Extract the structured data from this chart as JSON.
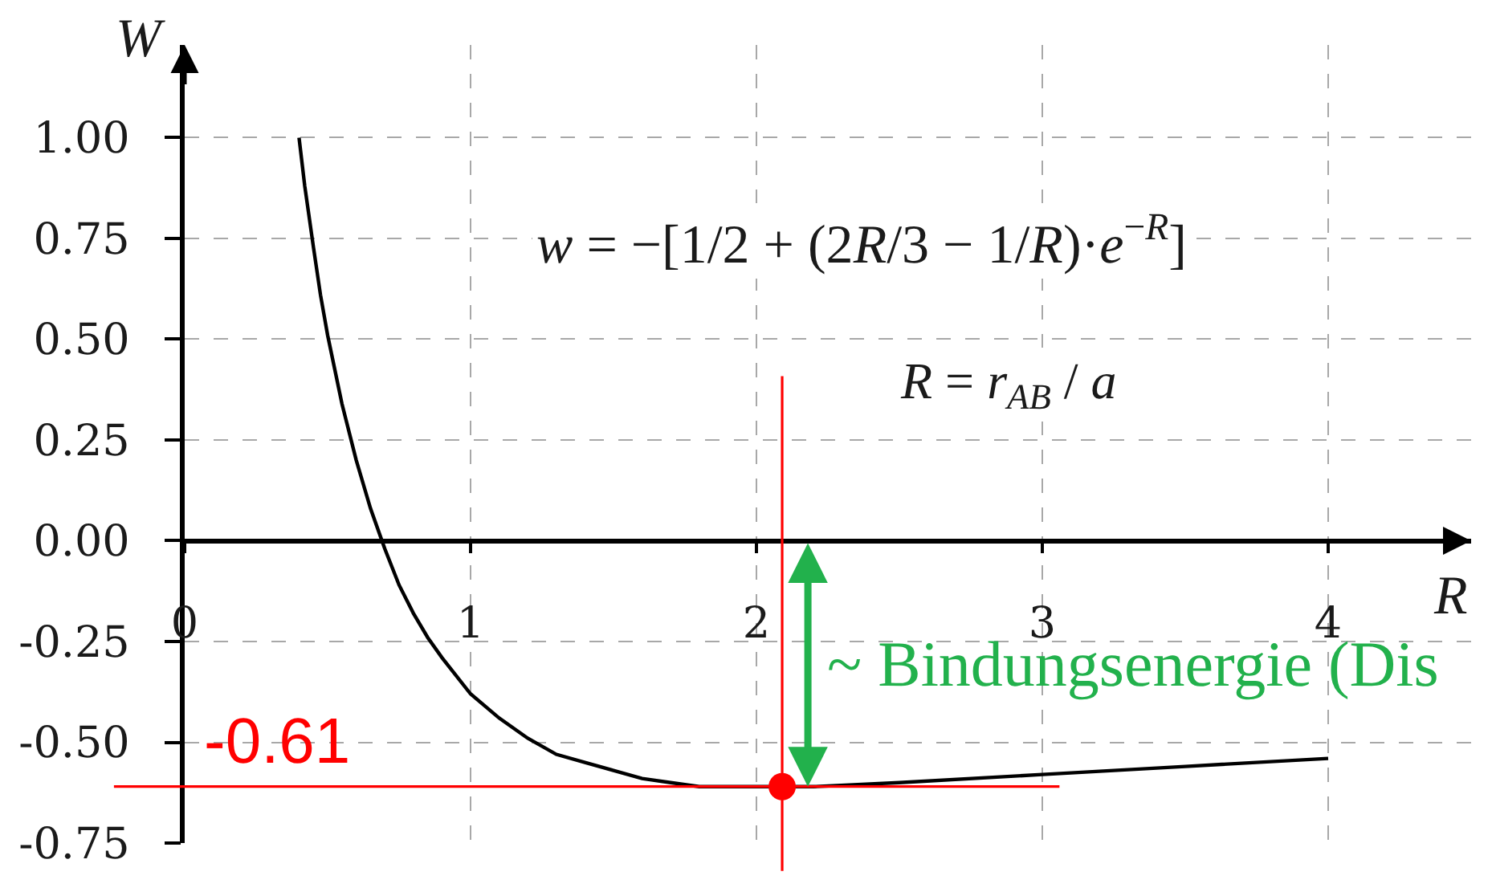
{
  "chart_data": {
    "type": "line",
    "xlabel": "R",
    "ylabel": "W",
    "annotations": [
      "w = −[1/2 + (2R/3 − 1/R)·e$^{−R}$]",
      "R = r$_{AB}$ / a",
      {
        "text": "~ Bindungsenergie (Dis",
        "x": 2.18,
        "y": -0.61
      }
    ],
    "series": [
      {
        "color": "#000000",
        "x": [
          0.4,
          0.42,
          0.45,
          0.475,
          0.5,
          0.55,
          0.6,
          0.65,
          0.7,
          0.75,
          0.8,
          0.85,
          0.9,
          1.0,
          1.1,
          1.2,
          1.3,
          1.4,
          1.5,
          1.6,
          1.7,
          1.8,
          2.0,
          2.2,
          2.5,
          3.0,
          3.5,
          4.0
        ],
        "values": [
          1.0,
          0.88,
          0.73,
          0.61,
          0.51,
          0.34,
          0.2,
          0.08,
          -0.02,
          -0.11,
          -0.18,
          -0.24,
          -0.29,
          -0.38,
          -0.44,
          -0.49,
          -0.53,
          -0.55,
          -0.57,
          -0.59,
          -0.6,
          -0.61,
          -0.61,
          -0.61,
          -0.6,
          -0.58,
          -0.56,
          -0.54
        ]
      },
      {
        "type": "scatter",
        "color": "#ff0000",
        "marker": "circle",
        "x": [
          2.09
        ],
        "values": [
          -0.61
        ]
      }
    ],
    "xlim": [
      0,
      4.5
    ],
    "ylim": [
      -0.75,
      1.23
    ],
    "xticks": [
      0,
      1,
      2,
      3,
      4
    ],
    "yticks": [
      {
        "value": 1,
        "label": "1.00"
      },
      {
        "value": 0.75,
        "label": "0.75"
      },
      {
        "value": 0.5,
        "label": "0.50"
      },
      {
        "value": 0.25,
        "label": "0.25"
      },
      {
        "value": 0,
        "label": "0.00"
      },
      {
        "value": -0.25,
        "label": "-0.25"
      },
      {
        "value": -0.5,
        "label": "-0.50"
      },
      {
        "value": -0.75,
        "label": "-0.75"
      }
    ],
    "ref_lines": [
      {
        "axis": "y",
        "value": -0.61,
        "label": "-0.61",
        "color": "#ff0000"
      },
      {
        "axis": "x",
        "value": 2.09,
        "color": "#ff0000"
      }
    ],
    "grid": true
  }
}
